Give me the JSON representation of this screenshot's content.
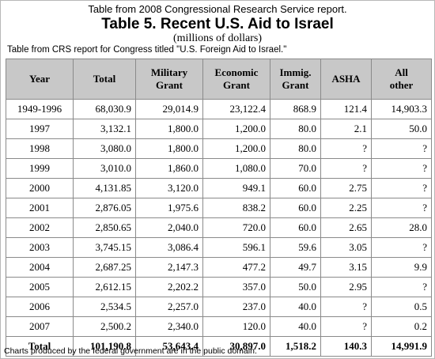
{
  "captions": {
    "top": "Table from 2008 Congressional Research Service report.",
    "title": "Table 5.  Recent U.S. Aid to Israel",
    "subtitle": "(millions of dollars)",
    "source": "Table from CRS report for Congress titled \"U.S. Foreign Aid to Israel.\"",
    "footer": "Charts produced by the federal government are in the public domain."
  },
  "table": {
    "headers": [
      {
        "line1": "Year",
        "line2": ""
      },
      {
        "line1": "Total",
        "line2": ""
      },
      {
        "line1": "Military",
        "line2": "Grant"
      },
      {
        "line1": "Economic",
        "line2": "Grant"
      },
      {
        "line1": "Immig.",
        "line2": "Grant"
      },
      {
        "line1": "ASHA",
        "line2": ""
      },
      {
        "line1": "All",
        "line2": "other"
      }
    ],
    "rows": [
      [
        "1949-1996",
        "68,030.9",
        "29,014.9",
        "23,122.4",
        "868.9",
        "121.4",
        "14,903.3"
      ],
      [
        "1997",
        "3,132.1",
        "1,800.0",
        "1,200.0",
        "80.0",
        "2.1",
        "50.0"
      ],
      [
        "1998",
        "3,080.0",
        "1,800.0",
        "1,200.0",
        "80.0",
        "?",
        "?"
      ],
      [
        "1999",
        "3,010.0",
        "1,860.0",
        "1,080.0",
        "70.0",
        "?",
        "?"
      ],
      [
        "2000",
        "4,131.85",
        "3,120.0",
        "949.1",
        "60.0",
        "2.75",
        "?"
      ],
      [
        "2001",
        "2,876.05",
        "1,975.6",
        "838.2",
        "60.0",
        "2.25",
        "?"
      ],
      [
        "2002",
        "2,850.65",
        "2,040.0",
        "720.0",
        "60.0",
        "2.65",
        "28.0"
      ],
      [
        "2003",
        "3,745.15",
        "3,086.4",
        "596.1",
        "59.6",
        "3.05",
        "?"
      ],
      [
        "2004",
        "2,687.25",
        "2,147.3",
        "477.2",
        "49.7",
        "3.15",
        "9.9"
      ],
      [
        "2005",
        "2,612.15",
        "2,202.2",
        "357.0",
        "50.0",
        "2.95",
        "?"
      ],
      [
        "2006",
        "2,534.5",
        "2,257.0",
        "237.0",
        "40.0",
        "?",
        "0.5"
      ],
      [
        "2007",
        "2,500.2",
        "2,340.0",
        "120.0",
        "40.0",
        "?",
        "0.2"
      ]
    ],
    "total": [
      "Total",
      "101,190.8",
      "53,643.4",
      "30,897.0",
      "1,518.2",
      "140.3",
      "14,991.9"
    ]
  }
}
